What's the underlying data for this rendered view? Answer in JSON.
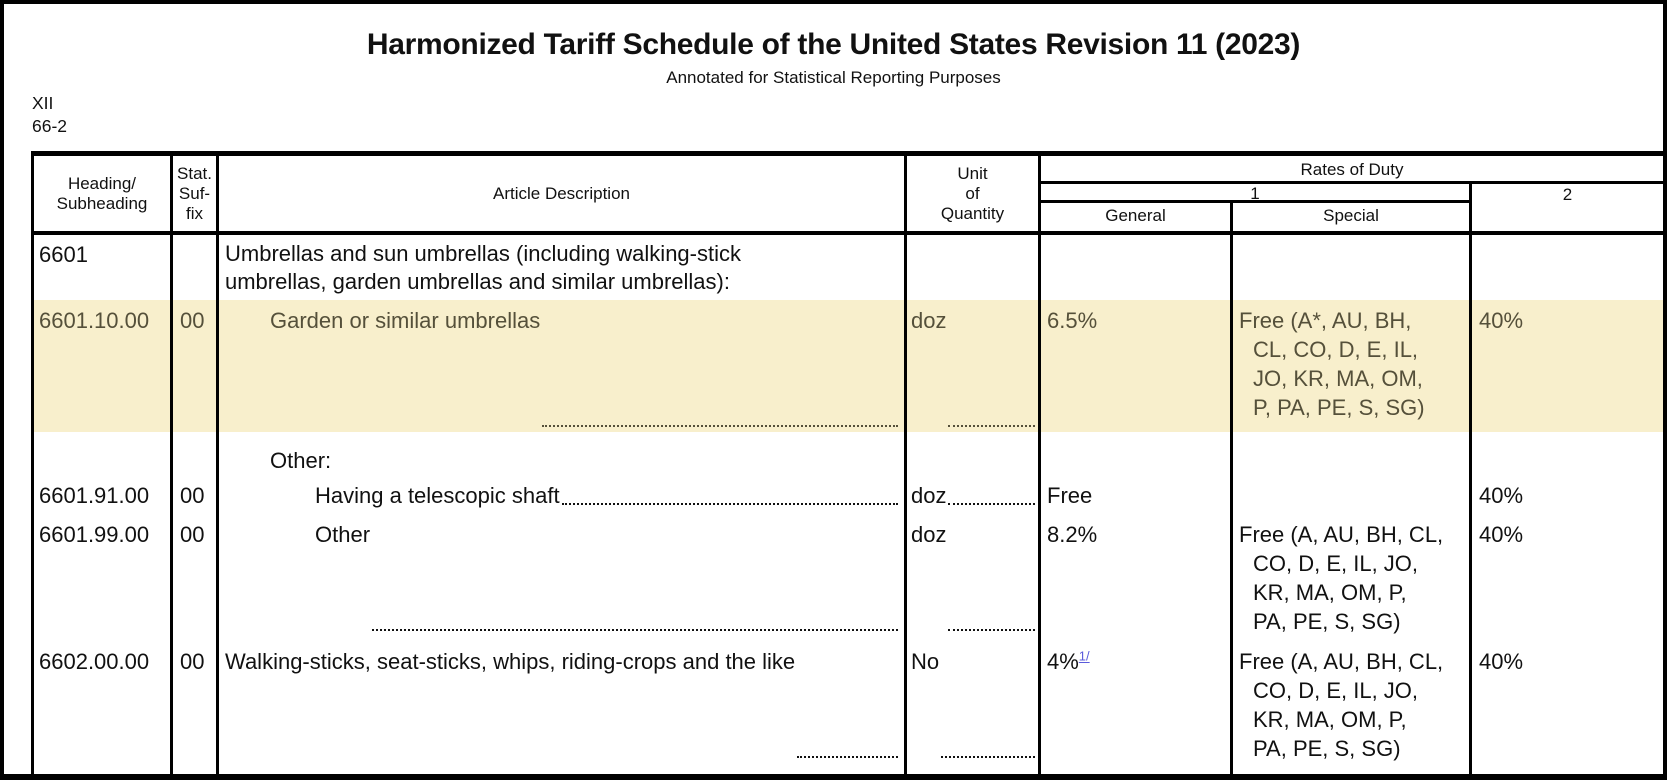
{
  "page": {
    "title": "Harmonized Tariff Schedule of the United States Revision 11 (2023)",
    "subtitle": "Annotated for Statistical Reporting Purposes",
    "section_and_page": "XII\n66-2"
  },
  "table": {
    "header": {
      "heading_subheading": "Heading/\nSubheading",
      "stat_suffix": "Stat.\nSuf-\nfix",
      "article_description": "Article Description",
      "unit_of_quantity": "Unit\nof\nQuantity",
      "rates_of_duty": "Rates of Duty",
      "duty_col_1": "1",
      "duty_col_2": "2",
      "general": "General",
      "special": "Special"
    },
    "rows": [
      {
        "heading": "6601",
        "description": "Umbrellas and sun umbrellas (including walking-stick\numbrellas, garden umbrellas and similar umbrellas):"
      },
      {
        "heading": "6601.10.00",
        "stat_suffix": "00",
        "description": "Garden or similar umbrellas",
        "unit": "doz",
        "general": "6.5%",
        "special": "Free (A*, AU, BH,\nCL, CO, D, E, IL,\nJO, KR, MA, OM,\nP, PA, PE, S, SG)",
        "rate2": "40%",
        "highlighted": true
      },
      {
        "description": "Other:"
      },
      {
        "heading": "6601.91.00",
        "stat_suffix": "00",
        "description": "Having a telescopic shaft",
        "unit": "doz",
        "general": "Free",
        "rate2": "40%"
      },
      {
        "heading": "6601.99.00",
        "stat_suffix": "00",
        "description": "Other",
        "unit": "doz",
        "general": "8.2%",
        "special": "Free (A, AU, BH, CL,\nCO, D, E, IL, JO,\nKR, MA, OM, P,\nPA, PE, S, SG)",
        "rate2": "40%"
      },
      {
        "heading": "6602.00.00",
        "stat_suffix": "00",
        "description": "Walking-sticks, seat-sticks, whips, riding-crops and the like",
        "unit": "No",
        "general": "4%",
        "general_footnote": "1/",
        "special": "Free (A, AU, BH, CL,\nCO, D, E, IL, JO,\nKR, MA, OM, P,\nPA, PE, S, SG)",
        "rate2": "40%"
      }
    ]
  },
  "colors": {
    "highlight_background": "#f8efcc",
    "highlight_text": "#55503a",
    "footnote_link": "#5b5bdb"
  }
}
